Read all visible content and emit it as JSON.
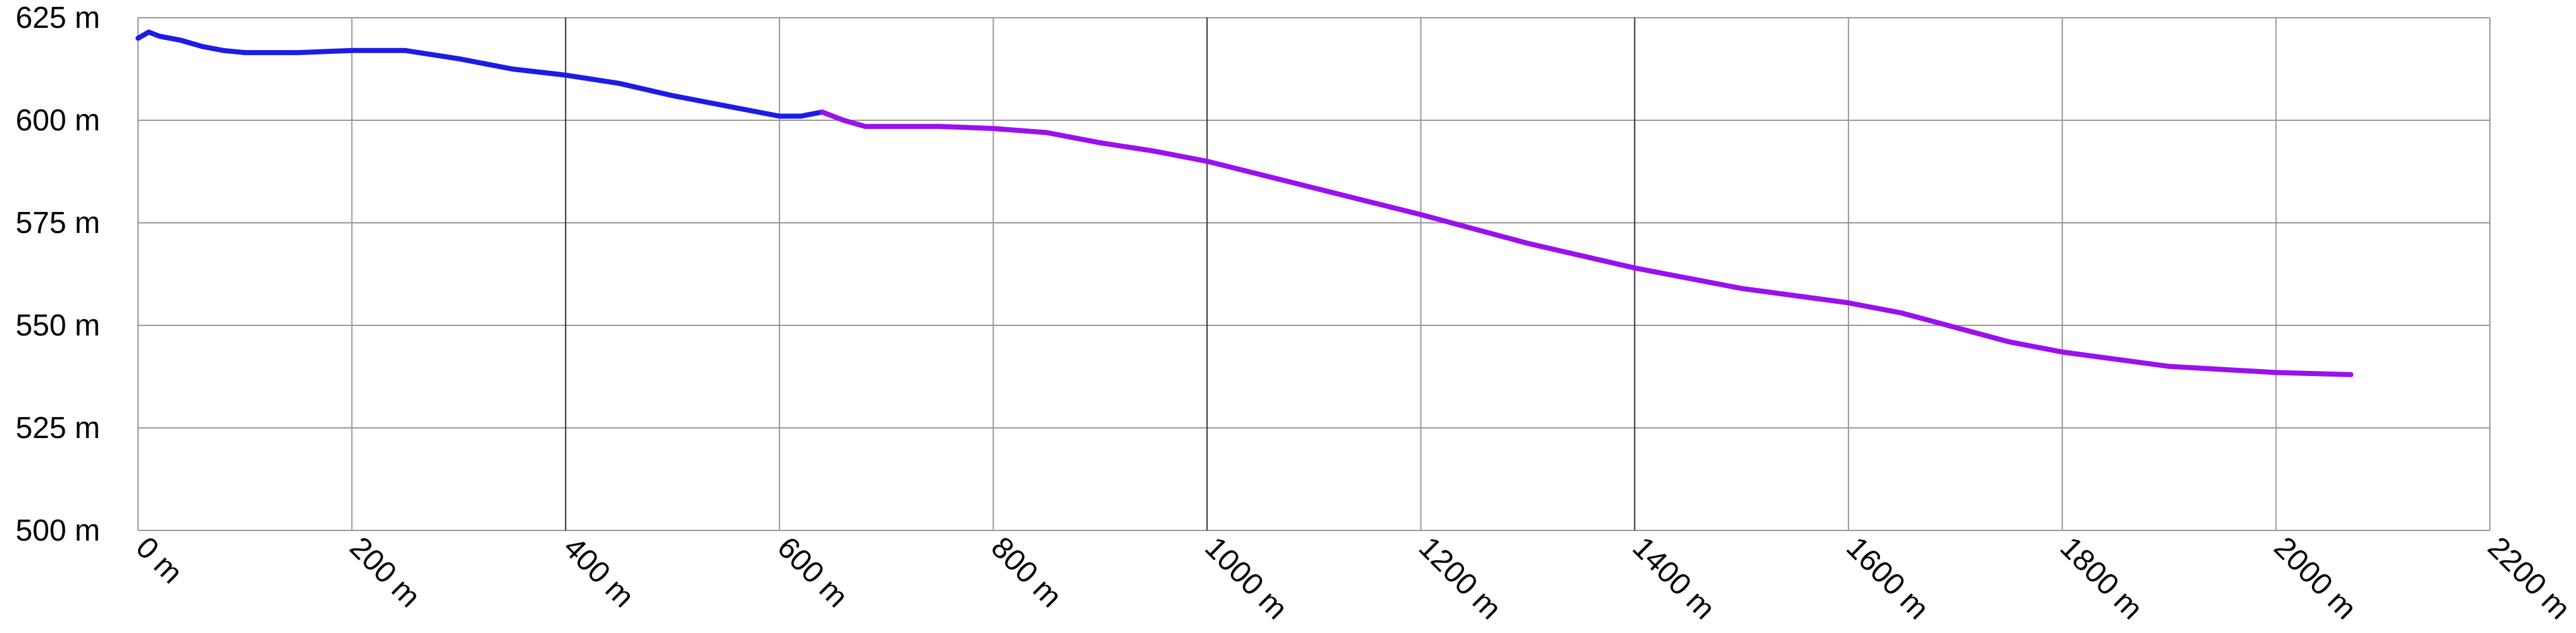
{
  "chart_data": {
    "type": "line",
    "title": "",
    "xlabel": "",
    "ylabel": "",
    "xlim": [
      0,
      2200
    ],
    "ylim": [
      500,
      625
    ],
    "x_ticks": [
      0,
      200,
      400,
      600,
      800,
      1000,
      1200,
      1400,
      1600,
      1800,
      2000,
      2200
    ],
    "x_tick_labels": [
      "0 m",
      "200 m",
      "400 m",
      "600 m",
      "800 m",
      "1000 m",
      "1200 m",
      "1400 m",
      "1600 m",
      "1800 m",
      "2000 m",
      "2200 m"
    ],
    "y_ticks": [
      500,
      525,
      550,
      575,
      600,
      625
    ],
    "y_tick_labels": [
      "500 m",
      "525 m",
      "550 m",
      "575 m",
      "600 m",
      "625 m"
    ],
    "grid": true,
    "legend": "none",
    "series": [
      {
        "color": "#1c1ce6",
        "x": [
          0,
          10,
          20,
          40,
          60,
          80,
          100,
          150,
          200,
          250,
          300,
          350,
          400,
          450,
          500,
          550,
          600,
          620,
          640
        ],
        "y": [
          620,
          621.5,
          620.5,
          619.5,
          618,
          617,
          616.5,
          616.5,
          617,
          617,
          615,
          612.5,
          611,
          609,
          606,
          603.5,
          601,
          601,
          602
        ]
      },
      {
        "color": "#9a10ee",
        "x": [
          640,
          660,
          680,
          700,
          750,
          800,
          850,
          900,
          950,
          1000,
          1100,
          1200,
          1300,
          1400,
          1500,
          1600,
          1650,
          1700,
          1750,
          1800,
          1900,
          2000,
          2070
        ],
        "y": [
          602,
          600,
          598.5,
          598.5,
          598.5,
          598,
          597,
          594.5,
          592.5,
          590,
          583.5,
          577,
          570,
          564,
          559,
          555.5,
          553,
          549.5,
          546,
          543.5,
          540,
          538.5,
          538
        ]
      }
    ]
  }
}
